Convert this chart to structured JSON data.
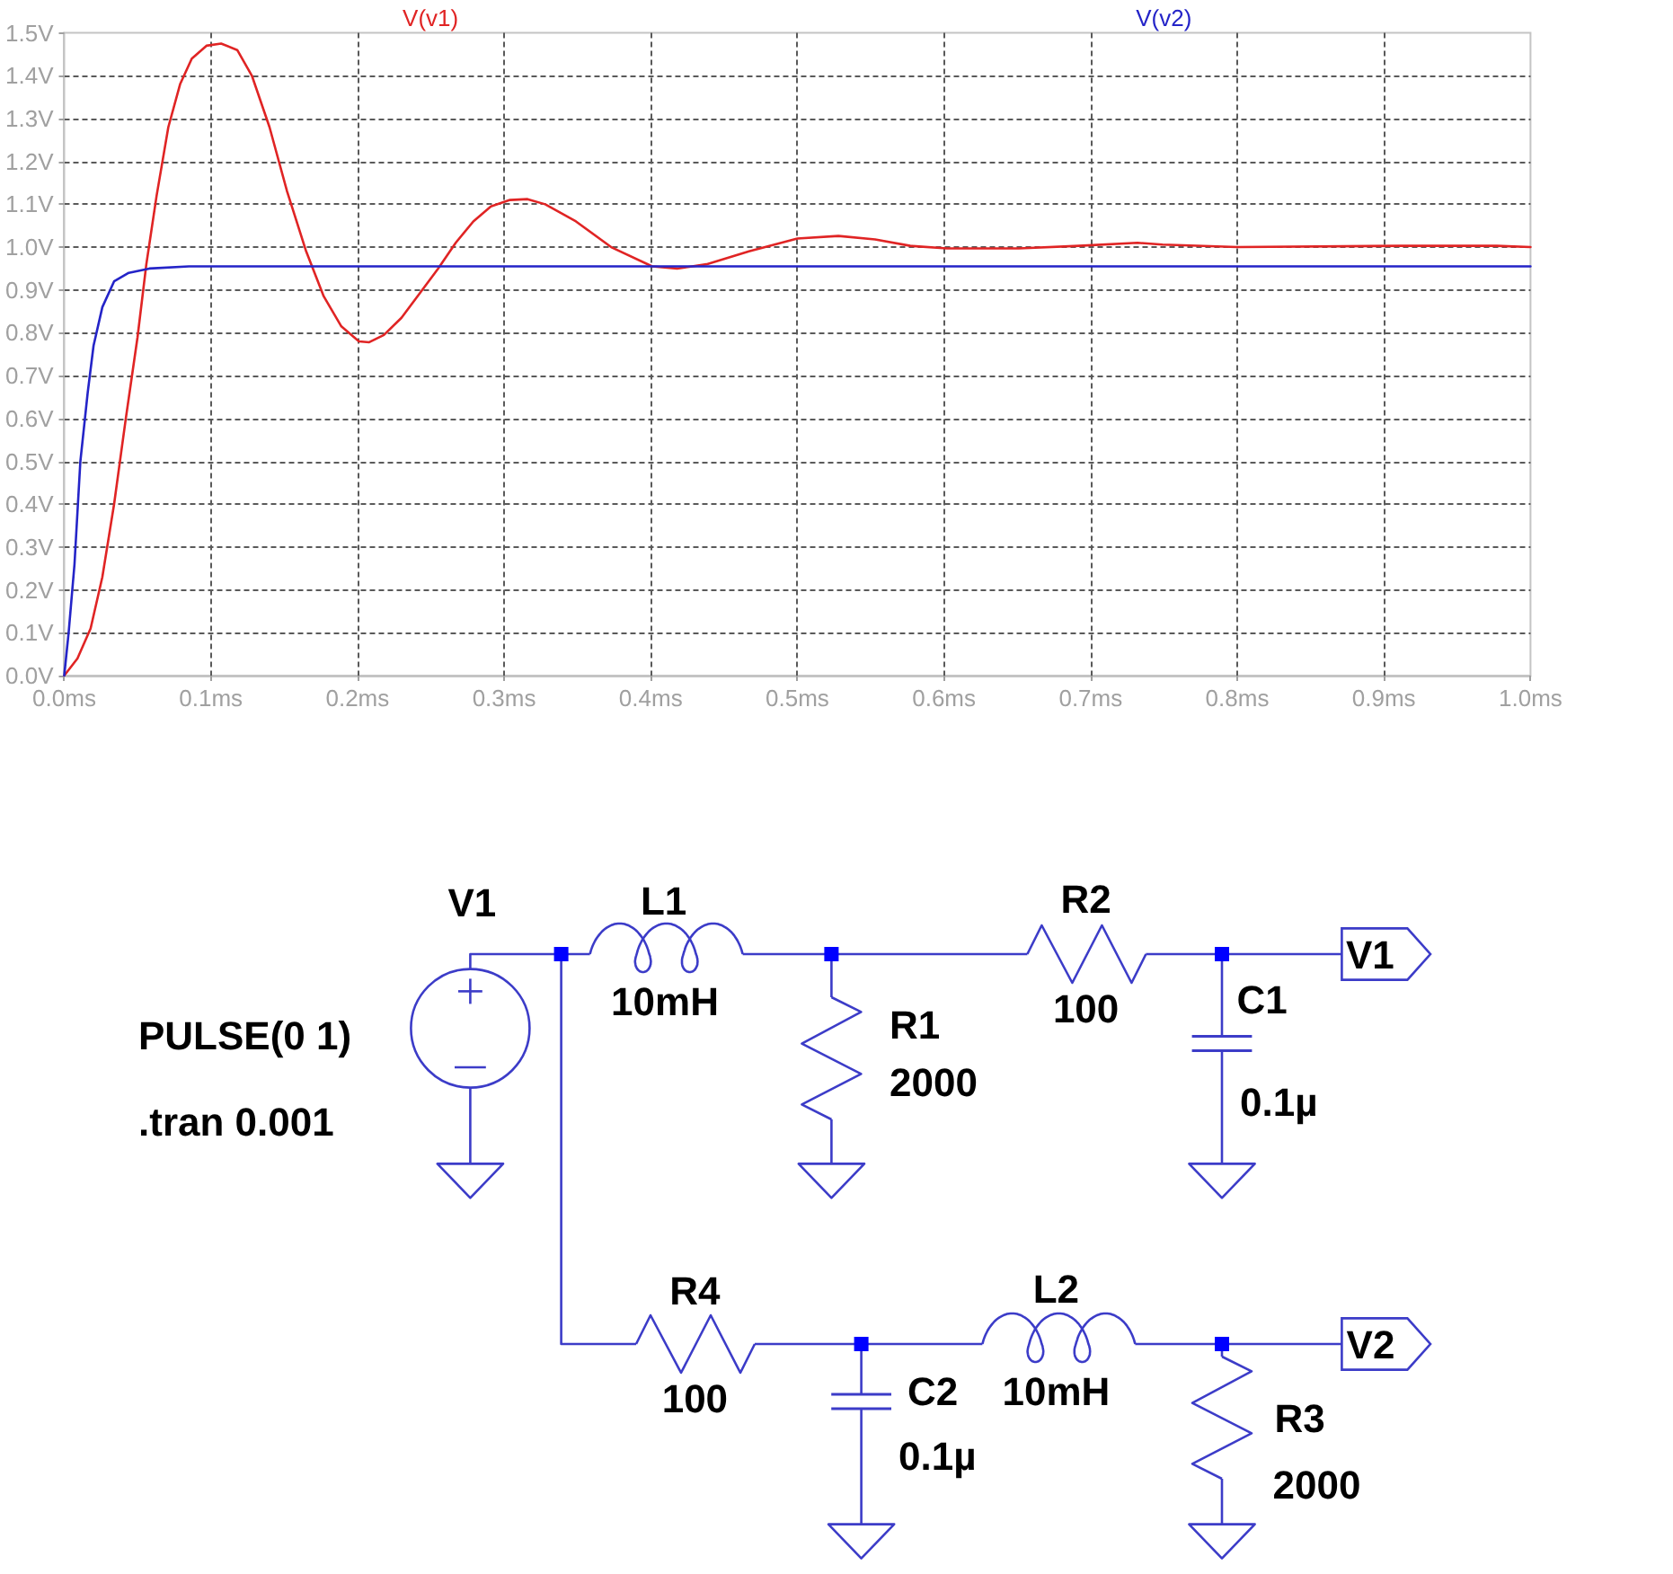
{
  "chart_data": {
    "type": "line",
    "series": [
      {
        "name": "V(v1)",
        "color": "#e02424",
        "x": [
          0,
          0.009,
          0.018,
          0.026,
          0.034,
          0.042,
          0.05,
          0.056,
          0.063,
          0.071,
          0.079,
          0.087,
          0.097,
          0.107,
          0.118,
          0.128,
          0.14,
          0.152,
          0.165,
          0.177,
          0.189,
          0.201,
          0.208,
          0.218,
          0.23,
          0.242,
          0.255,
          0.267,
          0.279,
          0.291,
          0.304,
          0.316,
          0.328,
          0.349,
          0.373,
          0.401,
          0.418,
          0.438,
          0.467,
          0.5,
          0.528,
          0.553,
          0.577,
          0.602,
          0.651,
          0.692,
          0.732,
          0.749,
          0.8,
          0.912,
          0.977,
          1.0
        ],
        "values": [
          0,
          0.04,
          0.11,
          0.23,
          0.4,
          0.6,
          0.79,
          0.96,
          1.12,
          1.28,
          1.38,
          1.44,
          1.47,
          1.475,
          1.46,
          1.4,
          1.28,
          1.13,
          0.99,
          0.885,
          0.815,
          0.78,
          0.778,
          0.795,
          0.835,
          0.89,
          0.95,
          1.01,
          1.06,
          1.095,
          1.11,
          1.112,
          1.1,
          1.06,
          1.0,
          0.955,
          0.95,
          0.96,
          0.99,
          1.02,
          1.026,
          1.018,
          1.003,
          0.997,
          0.997,
          1.003,
          1.01,
          1.006,
          1.0,
          1.003,
          1.003,
          1.0
        ]
      },
      {
        "name": "V(v2)",
        "color": "#2424c8",
        "x": [
          0,
          0.003,
          0.007,
          0.011,
          0.016,
          0.02,
          0.026,
          0.034,
          0.044,
          0.058,
          0.085,
          1.0
        ],
        "values": [
          0,
          0.1,
          0.26,
          0.5,
          0.66,
          0.77,
          0.86,
          0.92,
          0.94,
          0.95,
          0.955,
          0.955
        ]
      }
    ],
    "xlim": [
      0,
      1
    ],
    "xticks": [
      {
        "value": 0,
        "label": "0.0ms"
      },
      {
        "value": 0.1,
        "label": "0.1ms"
      },
      {
        "value": 0.2,
        "label": "0.2ms"
      },
      {
        "value": 0.3,
        "label": "0.3ms"
      },
      {
        "value": 0.4,
        "label": "0.4ms"
      },
      {
        "value": 0.5,
        "label": "0.5ms"
      },
      {
        "value": 0.6,
        "label": "0.6ms"
      },
      {
        "value": 0.7,
        "label": "0.7ms"
      },
      {
        "value": 0.8,
        "label": "0.8ms"
      },
      {
        "value": 0.9,
        "label": "0.9ms"
      },
      {
        "value": 1.0,
        "label": "1.0ms"
      }
    ],
    "ylim": [
      0,
      1.5
    ],
    "yticks": [
      {
        "value": 0,
        "label": "0.0V"
      },
      {
        "value": 0.1,
        "label": "0.1V"
      },
      {
        "value": 0.2,
        "label": "0.2V"
      },
      {
        "value": 0.3,
        "label": "0.3V"
      },
      {
        "value": 0.4,
        "label": "0.4V"
      },
      {
        "value": 0.5,
        "label": "0.5V"
      },
      {
        "value": 0.6,
        "label": "0.6V"
      },
      {
        "value": 0.7,
        "label": "0.7V"
      },
      {
        "value": 0.8,
        "label": "0.8V"
      },
      {
        "value": 0.9,
        "label": "0.9V"
      },
      {
        "value": 1.0,
        "label": "1.0V"
      },
      {
        "value": 1.1,
        "label": "1.1V"
      },
      {
        "value": 1.2,
        "label": "1.2V"
      },
      {
        "value": 1.3,
        "label": "1.3V"
      },
      {
        "value": 1.4,
        "label": "1.4V"
      },
      {
        "value": 1.5,
        "label": "1.5V"
      }
    ],
    "grid": true,
    "legend": "top",
    "marker": "none",
    "line_style": "solid",
    "annotations": [
      "PULSE(0 1)",
      ".tran 0.001",
      "V1",
      "L1",
      "10mH",
      "R1",
      "2000",
      "R2",
      "100",
      "C1",
      "0.1µ",
      "V1",
      "R4",
      "100",
      "C2",
      "0.1µ",
      "L2",
      "10mH",
      "R3",
      "2000",
      "V2"
    ]
  }
}
